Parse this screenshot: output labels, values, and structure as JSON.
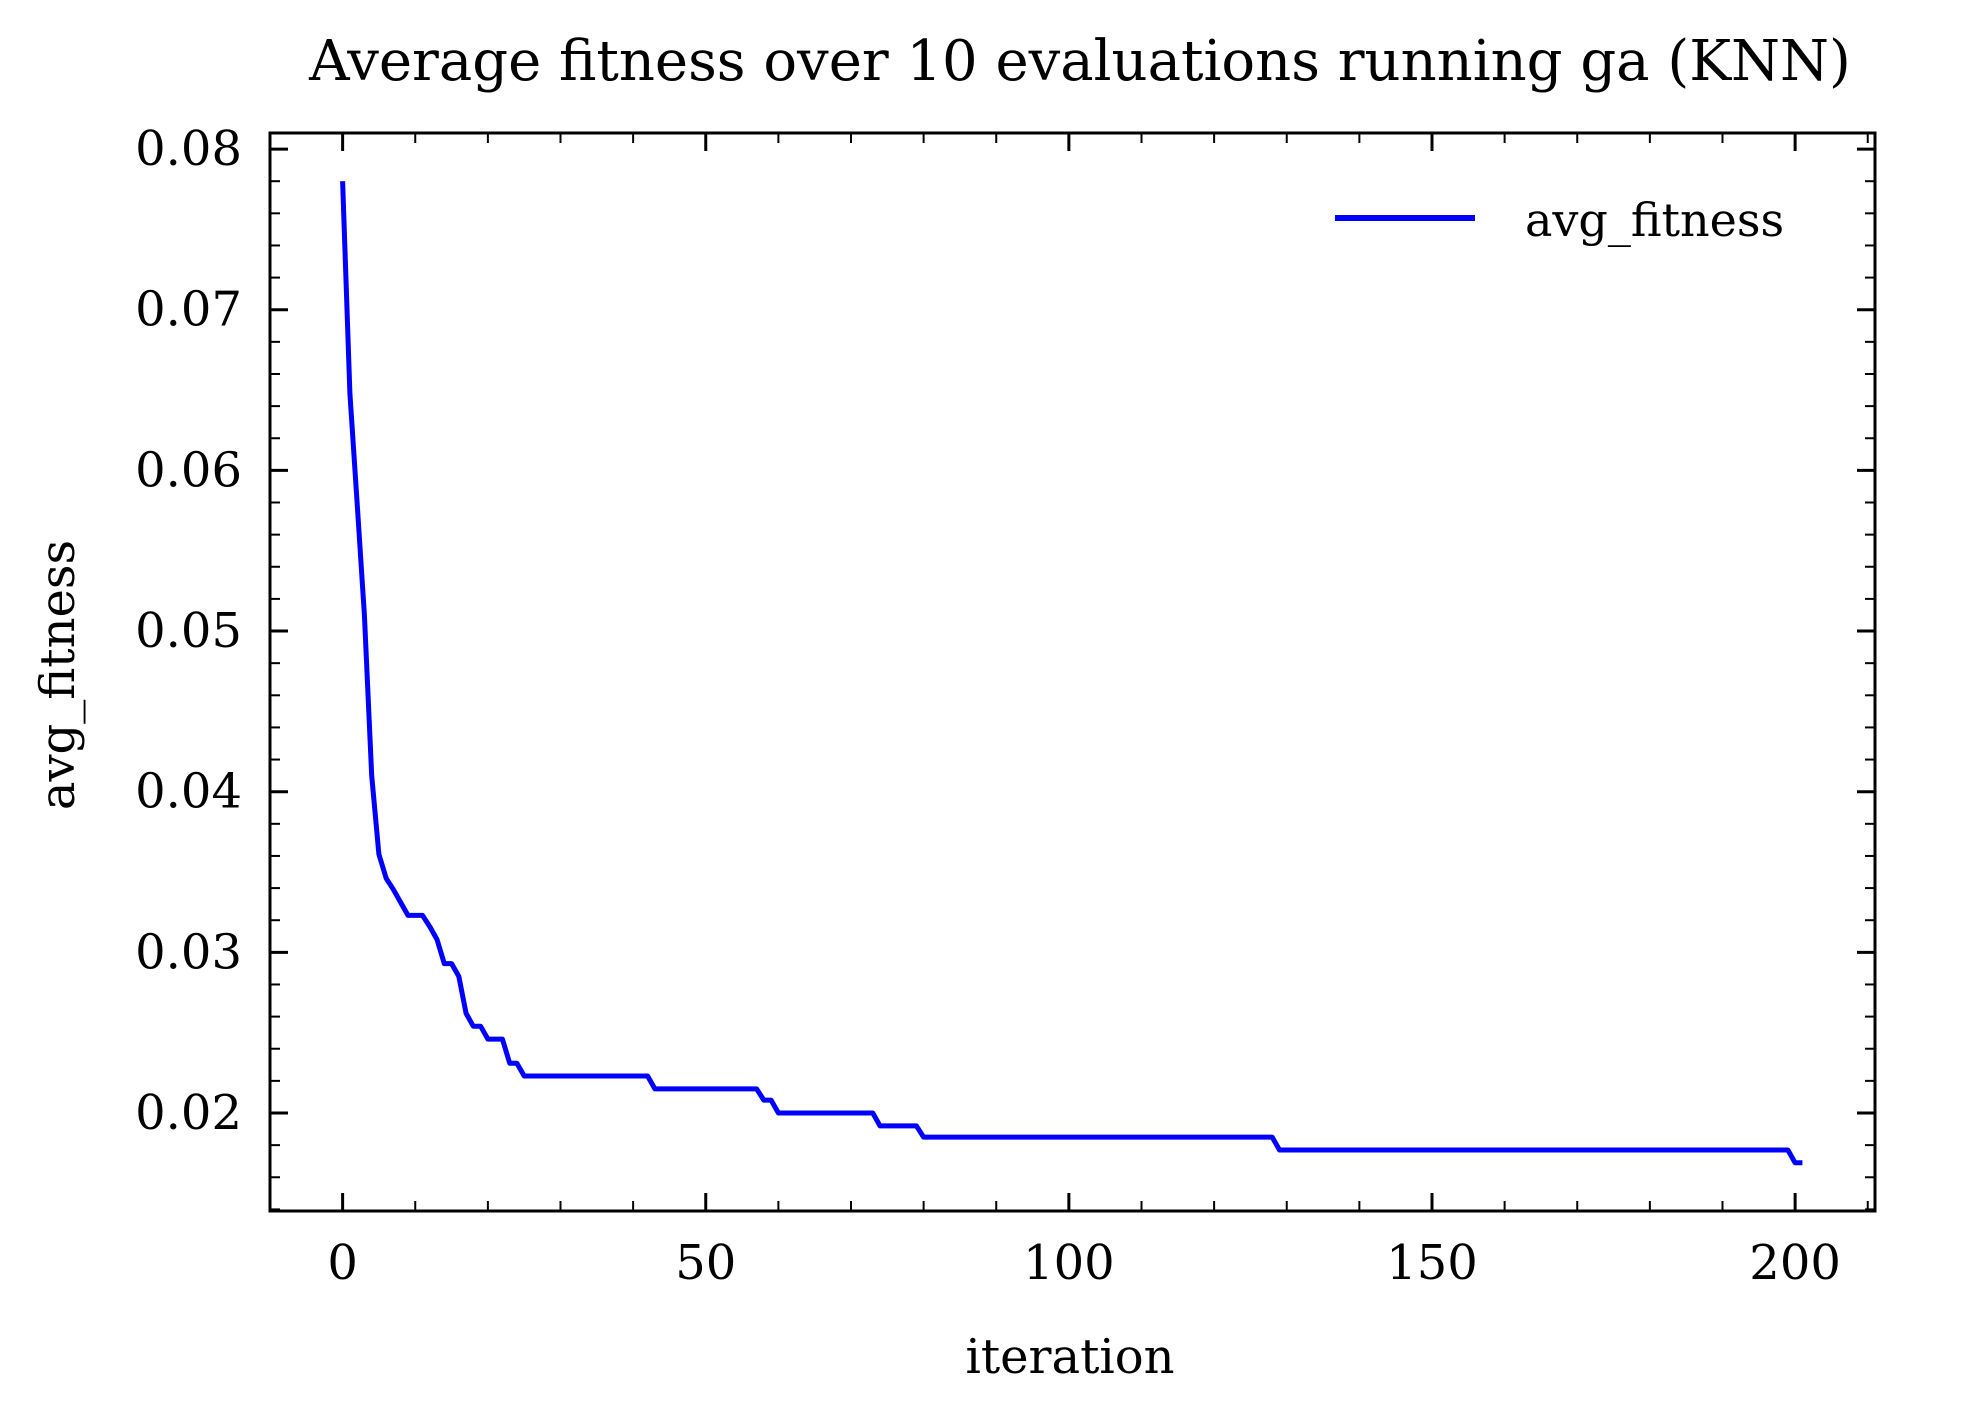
{
  "chart_data": {
    "type": "line",
    "title": "Average fitness over 10 evaluations running ga (KNN)",
    "xlabel": "iteration",
    "ylabel": "avg_fitness",
    "xlim": [
      -10,
      211
    ],
    "ylim": [
      0.0139,
      0.081
    ],
    "xticks": [
      0,
      50,
      100,
      150,
      200
    ],
    "xtick_labels": [
      "0",
      "50",
      "100",
      "150",
      "200"
    ],
    "yticks": [
      0.02,
      0.03,
      0.04,
      0.05,
      0.06,
      0.07,
      0.08
    ],
    "ytick_labels": [
      "0.02",
      "0.03",
      "0.04",
      "0.05",
      "0.06",
      "0.07",
      "0.08"
    ],
    "grid": false,
    "legend_position": "top-right",
    "series": [
      {
        "name": "avg_fitness",
        "color": "#0000ff",
        "x": [
          0,
          1,
          2,
          3,
          4,
          5,
          6,
          7,
          8,
          9,
          10,
          11,
          12,
          13,
          14,
          15,
          16,
          17,
          18,
          19,
          20,
          21,
          22,
          23,
          24,
          25,
          30,
          40,
          42,
          43,
          50,
          57,
          58,
          59,
          60,
          61,
          65,
          70,
          73,
          74,
          79,
          80,
          90,
          100,
          110,
          120,
          128,
          129,
          130,
          140,
          150,
          160,
          170,
          180,
          190,
          199,
          200,
          201
        ],
        "y": [
          0.078,
          0.0648,
          0.058,
          0.051,
          0.041,
          0.0361,
          0.0346,
          0.0339,
          0.0331,
          0.0323,
          0.0323,
          0.0323,
          0.0316,
          0.0308,
          0.0293,
          0.0293,
          0.0285,
          0.0262,
          0.0254,
          0.0254,
          0.0246,
          0.0246,
          0.0246,
          0.0231,
          0.0231,
          0.0223,
          0.0223,
          0.0223,
          0.0223,
          0.0215,
          0.0215,
          0.0215,
          0.0208,
          0.0208,
          0.02,
          0.02,
          0.02,
          0.02,
          0.02,
          0.0192,
          0.0192,
          0.0185,
          0.0185,
          0.0185,
          0.0185,
          0.0185,
          0.0185,
          0.0177,
          0.0177,
          0.0177,
          0.0177,
          0.0177,
          0.0177,
          0.0177,
          0.0177,
          0.0177,
          0.0169,
          0.0169
        ]
      }
    ]
  }
}
